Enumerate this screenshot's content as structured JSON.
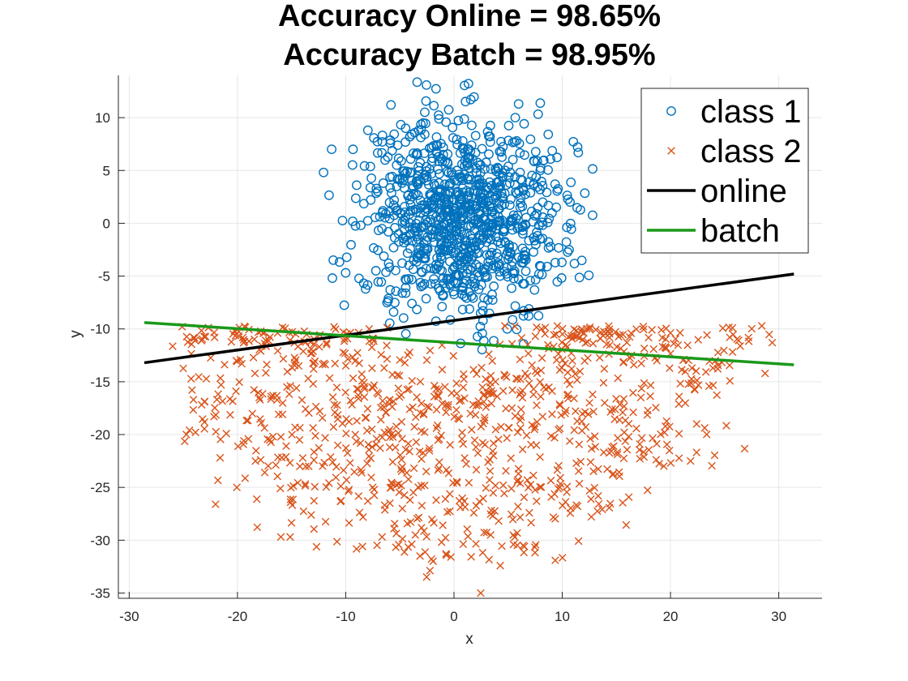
{
  "chart_data": {
    "type": "scatter",
    "title": [
      "Accuracy Online = 98.65%",
      "Accuracy Batch = 98.95%"
    ],
    "xlabel": "x",
    "ylabel": "y",
    "xlim": [
      -31,
      34
    ],
    "ylim": [
      -35.5,
      14
    ],
    "xticks": [
      -30,
      -20,
      -10,
      0,
      10,
      20,
      30
    ],
    "yticks": [
      -35,
      -30,
      -25,
      -20,
      -15,
      -10,
      -5,
      0,
      5,
      10
    ],
    "grid": true,
    "legend_position": "top-right",
    "series": [
      {
        "name": "class 1",
        "kind": "scatter",
        "marker": "circle",
        "color": "#0072bd",
        "distribution": {
          "center": [
            0.5,
            0.5
          ],
          "spread": [
            12.5,
            12.5
          ],
          "count": 1000,
          "shape": "disk"
        }
      },
      {
        "name": "class 2",
        "kind": "scatter",
        "marker": "x",
        "color": "#d95319",
        "distribution": {
          "center": [
            0,
            -8
          ],
          "radius_range": [
            8,
            27
          ],
          "count": 1000,
          "shape": "lower-half-ring"
        }
      },
      {
        "name": "online",
        "kind": "line",
        "color": "#000000",
        "x": [
          -28.6,
          31.4
        ],
        "y": [
          -13.2,
          -4.8
        ]
      },
      {
        "name": "batch",
        "kind": "line",
        "color": "#1a991a",
        "x": [
          -28.6,
          31.4
        ],
        "y": [
          -9.4,
          -13.4
        ]
      }
    ]
  }
}
